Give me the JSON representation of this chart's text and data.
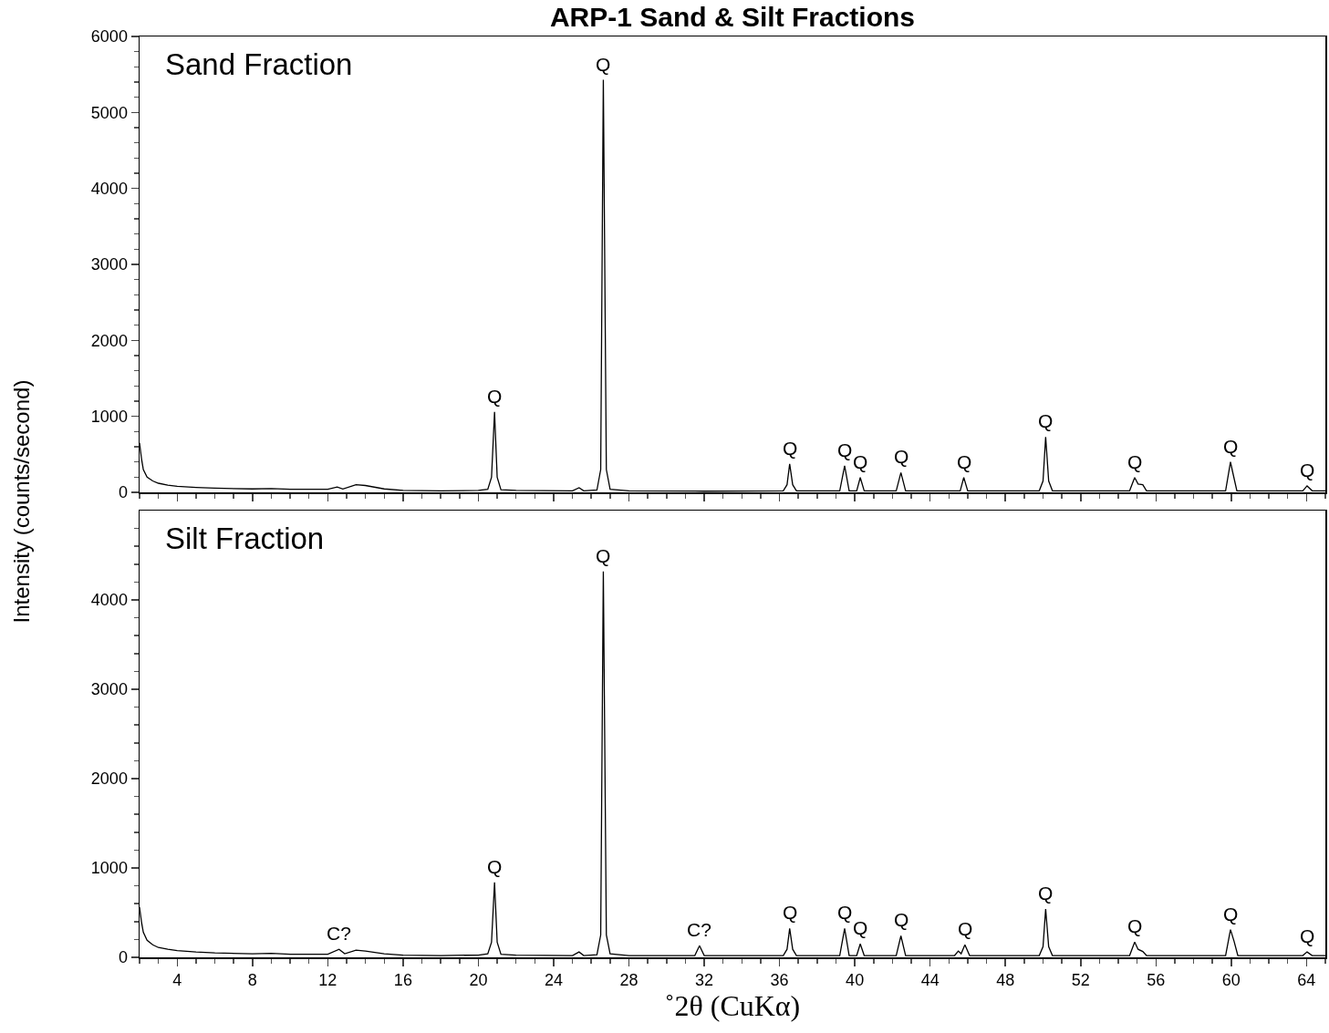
{
  "chart_data": [
    {
      "type": "line",
      "title": "ARP-1 Sand & Silt Fractions",
      "subtitle": "Sand Fraction",
      "ylabel": "Intensity (counts/second)",
      "line_style": "solid",
      "tick_labels": "y",
      "xlim": [
        2,
        65
      ],
      "ylim": [
        0,
        6000
      ],
      "xticks": [
        {
          "value": 2,
          "label": null
        },
        {
          "value": 3,
          "label": null
        },
        4,
        {
          "value": 5,
          "label": null
        },
        {
          "value": 6,
          "label": null
        },
        {
          "value": 7,
          "label": null
        },
        8,
        {
          "value": 9,
          "label": null
        },
        {
          "value": 10,
          "label": null
        },
        {
          "value": 11,
          "label": null
        },
        12,
        {
          "value": 13,
          "label": null
        },
        {
          "value": 14,
          "label": null
        },
        {
          "value": 15,
          "label": null
        },
        16,
        {
          "value": 17,
          "label": null
        },
        {
          "value": 18,
          "label": null
        },
        {
          "value": 19,
          "label": null
        },
        20,
        {
          "value": 21,
          "label": null
        },
        {
          "value": 22,
          "label": null
        },
        {
          "value": 23,
          "label": null
        },
        24,
        {
          "value": 25,
          "label": null
        },
        {
          "value": 26,
          "label": null
        },
        {
          "value": 27,
          "label": null
        },
        28,
        {
          "value": 29,
          "label": null
        },
        {
          "value": 30,
          "label": null
        },
        {
          "value": 31,
          "label": null
        },
        32,
        {
          "value": 33,
          "label": null
        },
        {
          "value": 34,
          "label": null
        },
        {
          "value": 35,
          "label": null
        },
        36,
        {
          "value": 37,
          "label": null
        },
        {
          "value": 38,
          "label": null
        },
        {
          "value": 39,
          "label": null
        },
        40,
        {
          "value": 41,
          "label": null
        },
        {
          "value": 42,
          "label": null
        },
        {
          "value": 43,
          "label": null
        },
        44,
        {
          "value": 45,
          "label": null
        },
        {
          "value": 46,
          "label": null
        },
        {
          "value": 47,
          "label": null
        },
        48,
        {
          "value": 49,
          "label": null
        },
        {
          "value": 50,
          "label": null
        },
        {
          "value": 51,
          "label": null
        },
        52,
        {
          "value": 53,
          "label": null
        },
        {
          "value": 54,
          "label": null
        },
        {
          "value": 55,
          "label": null
        },
        56,
        {
          "value": 57,
          "label": null
        },
        {
          "value": 58,
          "label": null
        },
        {
          "value": 59,
          "label": null
        },
        60,
        {
          "value": 61,
          "label": null
        },
        {
          "value": 62,
          "label": null
        },
        {
          "value": 63,
          "label": null
        },
        64,
        {
          "value": 65,
          "label": null
        }
      ],
      "yticks": [
        0,
        {
          "value": 200,
          "label": null
        },
        {
          "value": 400,
          "label": null
        },
        {
          "value": 600,
          "label": null
        },
        {
          "value": 800,
          "label": null
        },
        1000,
        {
          "value": 1200,
          "label": null
        },
        {
          "value": 1400,
          "label": null
        },
        {
          "value": 1600,
          "label": null
        },
        {
          "value": 1800,
          "label": null
        },
        2000,
        {
          "value": 2200,
          "label": null
        },
        {
          "value": 2400,
          "label": null
        },
        {
          "value": 2600,
          "label": null
        },
        {
          "value": 2800,
          "label": null
        },
        3000,
        {
          "value": 3200,
          "label": null
        },
        {
          "value": 3400,
          "label": null
        },
        {
          "value": 3600,
          "label": null
        },
        {
          "value": 3800,
          "label": null
        },
        4000,
        {
          "value": 4200,
          "label": null
        },
        {
          "value": 4400,
          "label": null
        },
        {
          "value": 4600,
          "label": null
        },
        {
          "value": 4800,
          "label": null
        },
        5000,
        {
          "value": 5200,
          "label": null
        },
        {
          "value": 5400,
          "label": null
        },
        {
          "value": 5600,
          "label": null
        },
        {
          "value": 5800,
          "label": null
        },
        6000
      ],
      "x": [
        2,
        2.1,
        2.2,
        2.4,
        2.7,
        3,
        3.5,
        4,
        5,
        6,
        8,
        9,
        10,
        12,
        12.5,
        12.8,
        13.5,
        14,
        15,
        16,
        18,
        20,
        20.5,
        20.7,
        20.86,
        21.0,
        21.2,
        22,
        25,
        25.35,
        25.6,
        26.3,
        26.5,
        26.64,
        26.8,
        27.0,
        28,
        32,
        36.2,
        36.4,
        36.54,
        36.7,
        36.9,
        39.2,
        39.46,
        39.7,
        40.1,
        40.29,
        40.5,
        42.2,
        42.45,
        42.7,
        45.6,
        45.79,
        46.0,
        49.8,
        50.0,
        50.14,
        50.3,
        50.5,
        54.6,
        54.87,
        55.05,
        55.3,
        55.5,
        59.7,
        59.96,
        60.1,
        60.3,
        63.8,
        64.03,
        64.3,
        65
      ],
      "series": [
        {
          "color": "#000000",
          "values": [
            650,
            450,
            300,
            200,
            150,
            120,
            95,
            80,
            65,
            55,
            45,
            50,
            40,
            40,
            70,
            45,
            100,
            90,
            45,
            25,
            20,
            25,
            40,
            200,
            1060,
            200,
            35,
            25,
            20,
            60,
            20,
            30,
            300,
            5430,
            300,
            40,
            20,
            15,
            20,
            100,
            375,
            100,
            20,
            20,
            350,
            20,
            20,
            195,
            20,
            20,
            260,
            20,
            20,
            195,
            20,
            20,
            150,
            730,
            150,
            20,
            20,
            195,
            110,
            100,
            20,
            20,
            400,
            240,
            20,
            20,
            85,
            20,
            20
          ]
        }
      ],
      "annotations": [
        {
          "text": "Q",
          "x": 20.86,
          "y": 1060
        },
        {
          "text": "Q",
          "x": 26.64,
          "y": 5430
        },
        {
          "text": "Q",
          "x": 36.54,
          "y": 375
        },
        {
          "text": "Q",
          "x": 39.46,
          "y": 350
        },
        {
          "text": "Q",
          "x": 40.29,
          "y": 195
        },
        {
          "text": "Q",
          "x": 42.45,
          "y": 260
        },
        {
          "text": "Q",
          "x": 45.79,
          "y": 195
        },
        {
          "text": "Q",
          "x": 50.14,
          "y": 730
        },
        {
          "text": "Q",
          "x": 54.87,
          "y": 195
        },
        {
          "text": "Q",
          "x": 59.96,
          "y": 400
        },
        {
          "text": "Q",
          "x": 64.03,
          "y": 85
        }
      ]
    },
    {
      "type": "line",
      "subtitle": "Silt Fraction",
      "xlabel": "˚2θ (CuKα)",
      "line_style": "solid",
      "xlim": [
        2,
        65
      ],
      "ylim": [
        0,
        5000
      ],
      "xticks": [
        {
          "value": 2,
          "label": null
        },
        {
          "value": 3,
          "label": null
        },
        4,
        {
          "value": 5,
          "label": null
        },
        {
          "value": 6,
          "label": null
        },
        {
          "value": 7,
          "label": null
        },
        8,
        {
          "value": 9,
          "label": null
        },
        {
          "value": 10,
          "label": null
        },
        {
          "value": 11,
          "label": null
        },
        12,
        {
          "value": 13,
          "label": null
        },
        {
          "value": 14,
          "label": null
        },
        {
          "value": 15,
          "label": null
        },
        16,
        {
          "value": 17,
          "label": null
        },
        {
          "value": 18,
          "label": null
        },
        {
          "value": 19,
          "label": null
        },
        20,
        {
          "value": 21,
          "label": null
        },
        {
          "value": 22,
          "label": null
        },
        {
          "value": 23,
          "label": null
        },
        24,
        {
          "value": 25,
          "label": null
        },
        {
          "value": 26,
          "label": null
        },
        {
          "value": 27,
          "label": null
        },
        28,
        {
          "value": 29,
          "label": null
        },
        {
          "value": 30,
          "label": null
        },
        {
          "value": 31,
          "label": null
        },
        32,
        {
          "value": 33,
          "label": null
        },
        {
          "value": 34,
          "label": null
        },
        {
          "value": 35,
          "label": null
        },
        36,
        {
          "value": 37,
          "label": null
        },
        {
          "value": 38,
          "label": null
        },
        {
          "value": 39,
          "label": null
        },
        40,
        {
          "value": 41,
          "label": null
        },
        {
          "value": 42,
          "label": null
        },
        {
          "value": 43,
          "label": null
        },
        44,
        {
          "value": 45,
          "label": null
        },
        {
          "value": 46,
          "label": null
        },
        {
          "value": 47,
          "label": null
        },
        48,
        {
          "value": 49,
          "label": null
        },
        {
          "value": 50,
          "label": null
        },
        {
          "value": 51,
          "label": null
        },
        52,
        {
          "value": 53,
          "label": null
        },
        {
          "value": 54,
          "label": null
        },
        {
          "value": 55,
          "label": null
        },
        56,
        {
          "value": 57,
          "label": null
        },
        {
          "value": 58,
          "label": null
        },
        {
          "value": 59,
          "label": null
        },
        60,
        {
          "value": 61,
          "label": null
        },
        {
          "value": 62,
          "label": null
        },
        {
          "value": 63,
          "label": null
        },
        64,
        {
          "value": 65,
          "label": null
        }
      ],
      "yticks": [
        0,
        {
          "value": 200,
          "label": null
        },
        {
          "value": 400,
          "label": null
        },
        {
          "value": 600,
          "label": null
        },
        {
          "value": 800,
          "label": null
        },
        1000,
        {
          "value": 1200,
          "label": null
        },
        {
          "value": 1400,
          "label": null
        },
        {
          "value": 1600,
          "label": null
        },
        {
          "value": 1800,
          "label": null
        },
        2000,
        {
          "value": 2200,
          "label": null
        },
        {
          "value": 2400,
          "label": null
        },
        {
          "value": 2600,
          "label": null
        },
        {
          "value": 2800,
          "label": null
        },
        3000,
        {
          "value": 3200,
          "label": null
        },
        {
          "value": 3400,
          "label": null
        },
        {
          "value": 3600,
          "label": null
        },
        {
          "value": 3800,
          "label": null
        },
        4000,
        {
          "value": 4200,
          "label": null
        },
        {
          "value": 4400,
          "label": null
        },
        {
          "value": 4600,
          "label": null
        },
        {
          "value": 4800,
          "label": null
        }
      ],
      "x": [
        2,
        2.1,
        2.2,
        2.4,
        2.7,
        3,
        3.5,
        4,
        5,
        6,
        8,
        9,
        10,
        12,
        12.6,
        12.9,
        13.5,
        14,
        15,
        16,
        18,
        20,
        20.5,
        20.7,
        20.86,
        21.0,
        21.2,
        22,
        25,
        25.35,
        25.6,
        26.3,
        26.5,
        26.64,
        26.8,
        27.0,
        28,
        31.5,
        31.75,
        32.0,
        34,
        36.2,
        36.4,
        36.54,
        36.7,
        36.9,
        39.2,
        39.46,
        39.7,
        40.1,
        40.29,
        40.5,
        42.2,
        42.45,
        42.7,
        45.3,
        45.5,
        45.65,
        45.85,
        46.1,
        49.8,
        50.0,
        50.14,
        50.3,
        50.5,
        54.6,
        54.87,
        55.05,
        55.3,
        55.5,
        59.7,
        59.96,
        60.15,
        60.35,
        63.8,
        64.03,
        64.3,
        65
      ],
      "series": [
        {
          "color": "#000000",
          "values": [
            560,
            400,
            280,
            190,
            140,
            110,
            90,
            75,
            60,
            50,
            40,
            45,
            35,
            35,
            90,
            40,
            80,
            70,
            40,
            25,
            20,
            25,
            40,
            170,
            840,
            170,
            35,
            25,
            20,
            60,
            20,
            30,
            250,
            4320,
            250,
            40,
            20,
            20,
            130,
            20,
            20,
            20,
            90,
            322,
            90,
            20,
            20,
            322,
            20,
            20,
            150,
            20,
            20,
            240,
            20,
            20,
            70,
            40,
            140,
            20,
            20,
            120,
            540,
            120,
            20,
            20,
            170,
            90,
            65,
            20,
            20,
            310,
            180,
            20,
            20,
            60,
            20,
            20
          ]
        }
      ],
      "annotations": [
        {
          "text": "C?",
          "x": 12.6,
          "y": 90
        },
        {
          "text": "Q",
          "x": 20.86,
          "y": 840
        },
        {
          "text": "Q",
          "x": 26.64,
          "y": 4320
        },
        {
          "text": "C?",
          "x": 31.75,
          "y": 130
        },
        {
          "text": "Q",
          "x": 36.54,
          "y": 322
        },
        {
          "text": "Q",
          "x": 39.46,
          "y": 322
        },
        {
          "text": "Q",
          "x": 40.29,
          "y": 150
        },
        {
          "text": "Q",
          "x": 42.45,
          "y": 240
        },
        {
          "text": "Q",
          "x": 45.85,
          "y": 140
        },
        {
          "text": "Q",
          "x": 50.14,
          "y": 540
        },
        {
          "text": "Q",
          "x": 54.87,
          "y": 170
        },
        {
          "text": "Q",
          "x": 59.96,
          "y": 310
        },
        {
          "text": "Q",
          "x": 64.03,
          "y": 60
        }
      ]
    }
  ]
}
